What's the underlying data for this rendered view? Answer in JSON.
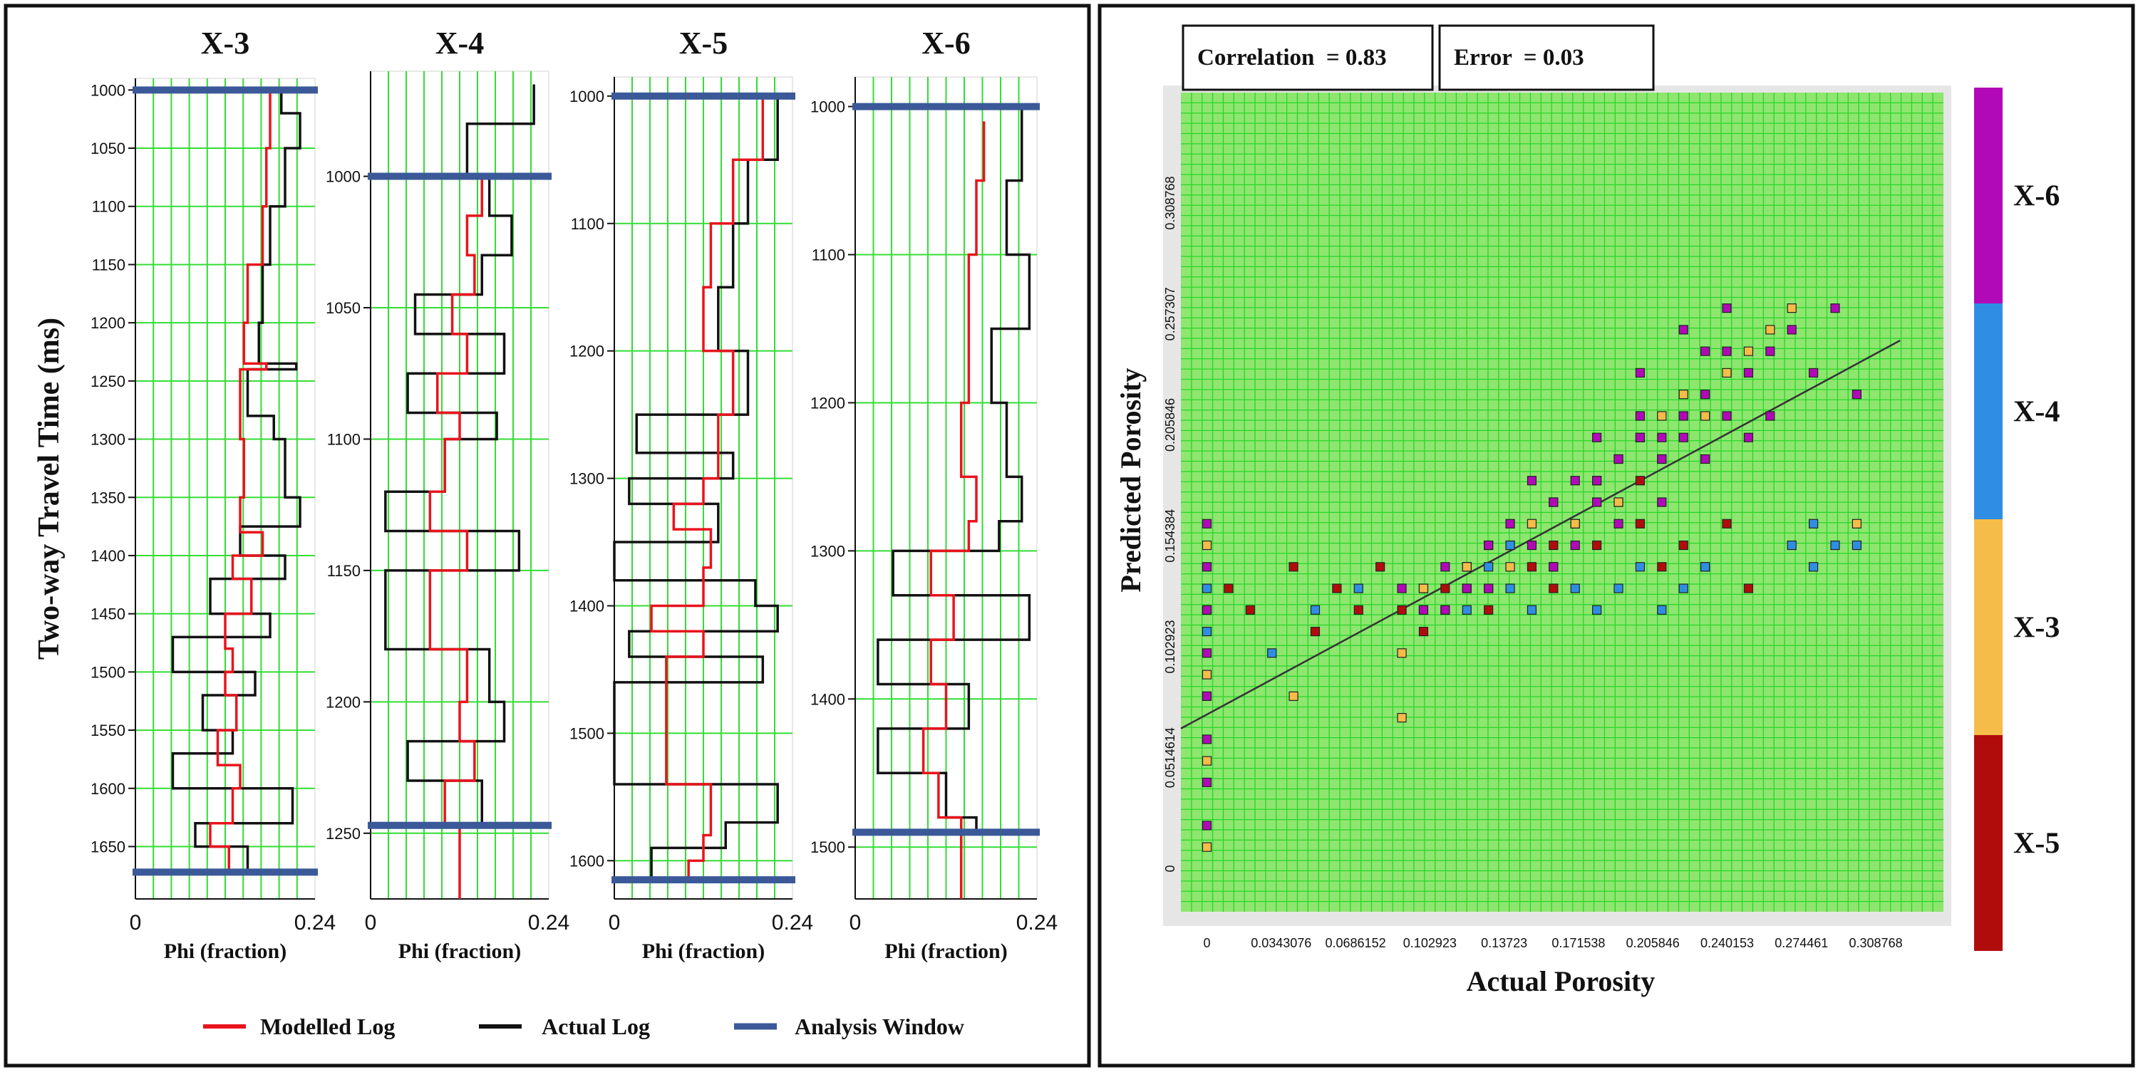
{
  "chart_data": [
    {
      "type": "line",
      "title": "X-3",
      "xlabel": "Phi (fraction)",
      "ylabel": "Two-way Travel Time (ms)",
      "xlim": [
        0,
        0.24
      ],
      "xtick_labels": [
        "0",
        "0.24"
      ],
      "ylim": [
        990,
        1695
      ],
      "yticks": [
        1000,
        1050,
        1100,
        1150,
        1200,
        1250,
        1300,
        1350,
        1400,
        1450,
        1500,
        1550,
        1600,
        1650
      ],
      "analysis_window": [
        1000,
        1672
      ],
      "series": [
        {
          "name": "Modelled Log",
          "color": "#e8141c",
          "t": [
            1000,
            1050,
            1100,
            1150,
            1200,
            1235,
            1240,
            1300,
            1350,
            1380,
            1400,
            1420,
            1450,
            1480,
            1500,
            1520,
            1550,
            1580,
            1600,
            1630,
            1650,
            1672
          ],
          "phi": [
            0.18,
            0.175,
            0.17,
            0.15,
            0.145,
            0.175,
            0.14,
            0.145,
            0.14,
            0.17,
            0.13,
            0.155,
            0.12,
            0.13,
            0.12,
            0.135,
            0.11,
            0.14,
            0.13,
            0.1,
            0.125,
            0.13
          ]
        },
        {
          "name": "Actual Log",
          "color": "#111111",
          "t": [
            1000,
            1020,
            1050,
            1100,
            1150,
            1200,
            1235,
            1240,
            1280,
            1300,
            1350,
            1375,
            1400,
            1420,
            1450,
            1470,
            1500,
            1520,
            1550,
            1570,
            1600,
            1630,
            1650,
            1672
          ],
          "phi": [
            0.195,
            0.22,
            0.2,
            0.18,
            0.17,
            0.165,
            0.215,
            0.15,
            0.185,
            0.2,
            0.22,
            0.14,
            0.2,
            0.1,
            0.18,
            0.05,
            0.16,
            0.09,
            0.13,
            0.05,
            0.21,
            0.08,
            0.15,
            0.11
          ]
        }
      ]
    },
    {
      "type": "line",
      "title": "X-4",
      "xlabel": "Phi (fraction)",
      "xlim": [
        0,
        0.24
      ],
      "xtick_labels": [
        "0",
        "0.24"
      ],
      "ylim": [
        960,
        1275
      ],
      "yticks": [
        1000,
        1050,
        1100,
        1150,
        1200,
        1250
      ],
      "analysis_window": [
        1000,
        1247
      ],
      "series": [
        {
          "name": "Modelled Log",
          "color": "#e8141c",
          "t": [
            1000,
            1015,
            1030,
            1045,
            1060,
            1075,
            1090,
            1100,
            1120,
            1135,
            1150,
            1180,
            1200,
            1215,
            1230,
            1247,
            1275
          ],
          "phi": [
            0.15,
            0.13,
            0.14,
            0.11,
            0.13,
            0.09,
            0.12,
            0.1,
            0.08,
            0.13,
            0.08,
            0.13,
            0.12,
            0.14,
            0.1,
            0.12,
            0.12
          ]
        },
        {
          "name": "Actual Log",
          "color": "#111111",
          "t": [
            965,
            980,
            1000,
            1015,
            1030,
            1045,
            1060,
            1075,
            1090,
            1100,
            1120,
            1135,
            1150,
            1165,
            1180,
            1200,
            1215,
            1230,
            1247
          ],
          "phi": [
            0.22,
            0.13,
            0.16,
            0.19,
            0.15,
            0.06,
            0.18,
            0.05,
            0.17,
            0.1,
            0.02,
            0.2,
            0.02,
            0.02,
            0.16,
            0.18,
            0.05,
            0.15,
            0.08
          ]
        }
      ]
    },
    {
      "type": "line",
      "title": "X-5",
      "xlabel": "Phi (fraction)",
      "xlim": [
        0,
        0.24
      ],
      "xtick_labels": [
        "0",
        "0.24"
      ],
      "ylim": [
        985,
        1630
      ],
      "yticks": [
        1000,
        1100,
        1200,
        1300,
        1400,
        1500,
        1600
      ],
      "analysis_window": [
        1000,
        1615
      ],
      "series": [
        {
          "name": "Modelled Log",
          "color": "#e8141c",
          "t": [
            1000,
            1050,
            1100,
            1150,
            1200,
            1250,
            1300,
            1320,
            1340,
            1370,
            1400,
            1420,
            1440,
            1460,
            1500,
            1540,
            1580,
            1600,
            1615
          ],
          "phi": [
            0.2,
            0.16,
            0.13,
            0.12,
            0.16,
            0.14,
            0.12,
            0.08,
            0.13,
            0.12,
            0.05,
            0.12,
            0.07,
            0.07,
            0.07,
            0.13,
            0.12,
            0.1,
            0.11
          ]
        },
        {
          "name": "Actual Log",
          "color": "#111111",
          "t": [
            1000,
            1050,
            1100,
            1150,
            1200,
            1250,
            1280,
            1300,
            1320,
            1350,
            1380,
            1400,
            1420,
            1440,
            1460,
            1500,
            1540,
            1570,
            1590,
            1615
          ],
          "phi": [
            0.22,
            0.18,
            0.16,
            0.14,
            0.18,
            0.03,
            0.16,
            0.02,
            0.14,
            0.0,
            0.19,
            0.22,
            0.02,
            0.2,
            0.0,
            0.0,
            0.22,
            0.15,
            0.05,
            0.12
          ]
        }
      ]
    },
    {
      "type": "line",
      "title": "X-6",
      "xlabel": "Phi (fraction)",
      "xlim": [
        0,
        0.24
      ],
      "xtick_labels": [
        "0",
        "0.24"
      ],
      "ylim": [
        980,
        1535
      ],
      "yticks": [
        1000,
        1100,
        1200,
        1300,
        1400,
        1500
      ],
      "analysis_window": [
        1000,
        1490
      ],
      "series": [
        {
          "name": "Modelled Log",
          "color": "#e8141c",
          "t": [
            1010,
            1050,
            1100,
            1150,
            1200,
            1250,
            1280,
            1300,
            1330,
            1360,
            1390,
            1420,
            1450,
            1480,
            1490,
            1535
          ],
          "phi": [
            0.17,
            0.16,
            0.15,
            0.15,
            0.14,
            0.16,
            0.15,
            0.1,
            0.13,
            0.1,
            0.12,
            0.09,
            0.11,
            0.14,
            0.14,
            0.14
          ]
        },
        {
          "name": "Actual Log",
          "color": "#111111",
          "t": [
            1000,
            1050,
            1100,
            1150,
            1200,
            1250,
            1280,
            1300,
            1330,
            1360,
            1390,
            1420,
            1450,
            1480,
            1490
          ],
          "phi": [
            0.22,
            0.2,
            0.23,
            0.18,
            0.2,
            0.22,
            0.19,
            0.05,
            0.23,
            0.03,
            0.15,
            0.03,
            0.12,
            0.16,
            0.19
          ]
        }
      ]
    },
    {
      "type": "scatter",
      "xlabel": "Actual Porosity",
      "ylabel": "Predicted Porosity",
      "xlim": [
        -0.012,
        0.34
      ],
      "ylim": [
        -0.02,
        0.36
      ],
      "xtick_labels": [
        "0",
        "0.0343076",
        "0.0686152",
        "0.102923",
        "0.13723",
        "0.171538",
        "0.205846",
        "0.240153",
        "0.274461",
        "0.308768"
      ],
      "ytick_labels": [
        "0",
        "0.0514614",
        "0.102923",
        "0.154384",
        "0.205846",
        "0.257307",
        "0.308768"
      ],
      "correlation_label": "Correlation  = 0.83",
      "error_label": "Error  = 0.03",
      "regression_line": {
        "x": [
          -0.012,
          0.32
        ],
        "y": [
          0.065,
          0.245
        ]
      },
      "wells": [
        {
          "name": "X-6",
          "color": "#b109b8"
        },
        {
          "name": "X-4",
          "color": "#2f8ee3"
        },
        {
          "name": "X-3",
          "color": "#f5bc4a"
        },
        {
          "name": "X-5",
          "color": "#b10c0c"
        }
      ],
      "points": {
        "X-6": [
          [
            0,
            0.16
          ],
          [
            0,
            0.14
          ],
          [
            0,
            0.12
          ],
          [
            0,
            0.1
          ],
          [
            0,
            0.08
          ],
          [
            0,
            0.06
          ],
          [
            0,
            0.04
          ],
          [
            0,
            0.02
          ],
          [
            0.09,
            0.13
          ],
          [
            0.1,
            0.12
          ],
          [
            0.11,
            0.14
          ],
          [
            0.12,
            0.13
          ],
          [
            0.13,
            0.15
          ],
          [
            0.14,
            0.16
          ],
          [
            0.15,
            0.15
          ],
          [
            0.16,
            0.17
          ],
          [
            0.17,
            0.18
          ],
          [
            0.18,
            0.17
          ],
          [
            0.19,
            0.19
          ],
          [
            0.2,
            0.2
          ],
          [
            0.21,
            0.19
          ],
          [
            0.22,
            0.21
          ],
          [
            0.23,
            0.22
          ],
          [
            0.24,
            0.21
          ],
          [
            0.25,
            0.23
          ],
          [
            0.26,
            0.24
          ],
          [
            0.27,
            0.25
          ],
          [
            0.28,
            0.23
          ],
          [
            0.29,
            0.26
          ],
          [
            0.3,
            0.22
          ],
          [
            0.15,
            0.18
          ],
          [
            0.16,
            0.14
          ],
          [
            0.18,
            0.2
          ],
          [
            0.19,
            0.16
          ],
          [
            0.2,
            0.23
          ],
          [
            0.21,
            0.17
          ],
          [
            0.22,
            0.2
          ],
          [
            0.23,
            0.19
          ],
          [
            0.24,
            0.24
          ],
          [
            0.25,
            0.2
          ],
          [
            0.26,
            0.21
          ],
          [
            0.17,
            0.15
          ],
          [
            0.13,
            0.13
          ],
          [
            0.11,
            0.12
          ],
          [
            0.22,
            0.25
          ],
          [
            0.23,
            0.24
          ],
          [
            0.2,
            0.21
          ],
          [
            0.18,
            0.18
          ],
          [
            0.24,
            0.26
          ],
          [
            0.21,
            0.2
          ]
        ],
        "X-4": [
          [
            0.0,
            0.13
          ],
          [
            0.0,
            0.11
          ],
          [
            0.03,
            0.1
          ],
          [
            0.05,
            0.12
          ],
          [
            0.07,
            0.13
          ],
          [
            0.1,
            0.13
          ],
          [
            0.12,
            0.12
          ],
          [
            0.13,
            0.14
          ],
          [
            0.14,
            0.13
          ],
          [
            0.15,
            0.12
          ],
          [
            0.16,
            0.14
          ],
          [
            0.17,
            0.13
          ],
          [
            0.18,
            0.12
          ],
          [
            0.19,
            0.13
          ],
          [
            0.2,
            0.14
          ],
          [
            0.21,
            0.12
          ],
          [
            0.22,
            0.13
          ],
          [
            0.23,
            0.14
          ],
          [
            0.27,
            0.15
          ],
          [
            0.28,
            0.14
          ],
          [
            0.29,
            0.15
          ],
          [
            0.3,
            0.15
          ],
          [
            0.28,
            0.16
          ],
          [
            0.12,
            0.14
          ],
          [
            0.14,
            0.15
          ]
        ],
        "X-3": [
          [
            0,
            0.15
          ],
          [
            0,
            0.12
          ],
          [
            0,
            0.09
          ],
          [
            0,
            0.05
          ],
          [
            0,
            0.01
          ],
          [
            0.04,
            0.08
          ],
          [
            0.09,
            0.1
          ],
          [
            0.1,
            0.13
          ],
          [
            0.11,
            0.12
          ],
          [
            0.12,
            0.14
          ],
          [
            0.13,
            0.15
          ],
          [
            0.14,
            0.14
          ],
          [
            0.15,
            0.16
          ],
          [
            0.16,
            0.17
          ],
          [
            0.17,
            0.16
          ],
          [
            0.18,
            0.18
          ],
          [
            0.19,
            0.19
          ],
          [
            0.2,
            0.2
          ],
          [
            0.21,
            0.21
          ],
          [
            0.22,
            0.22
          ],
          [
            0.23,
            0.21
          ],
          [
            0.24,
            0.23
          ],
          [
            0.25,
            0.24
          ],
          [
            0.26,
            0.25
          ],
          [
            0.27,
            0.26
          ],
          [
            0.3,
            0.16
          ],
          [
            0.09,
            0.07
          ],
          [
            0.12,
            0.13
          ],
          [
            0.19,
            0.17
          ],
          [
            0.21,
            0.19
          ]
        ],
        "X-5": [
          [
            0.01,
            0.13
          ],
          [
            0.02,
            0.12
          ],
          [
            0.04,
            0.14
          ],
          [
            0.05,
            0.11
          ],
          [
            0.06,
            0.13
          ],
          [
            0.07,
            0.12
          ],
          [
            0.08,
            0.14
          ],
          [
            0.09,
            0.12
          ],
          [
            0.1,
            0.12
          ],
          [
            0.11,
            0.13
          ],
          [
            0.12,
            0.14
          ],
          [
            0.13,
            0.13
          ],
          [
            0.14,
            0.15
          ],
          [
            0.15,
            0.14
          ],
          [
            0.16,
            0.15
          ],
          [
            0.17,
            0.16
          ],
          [
            0.18,
            0.15
          ],
          [
            0.19,
            0.17
          ],
          [
            0.2,
            0.16
          ],
          [
            0.21,
            0.14
          ],
          [
            0.22,
            0.15
          ],
          [
            0.23,
            0.14
          ],
          [
            0.24,
            0.16
          ],
          [
            0.25,
            0.13
          ],
          [
            0.1,
            0.11
          ],
          [
            0.13,
            0.12
          ],
          [
            0.16,
            0.13
          ],
          [
            0.2,
            0.18
          ]
        ]
      }
    }
  ],
  "legend": [
    {
      "label": "Modelled Log",
      "color": "#e8141c"
    },
    {
      "label": "Actual Log",
      "color": "#111111"
    },
    {
      "label": "Analysis Window",
      "color": "#3b5998"
    }
  ]
}
